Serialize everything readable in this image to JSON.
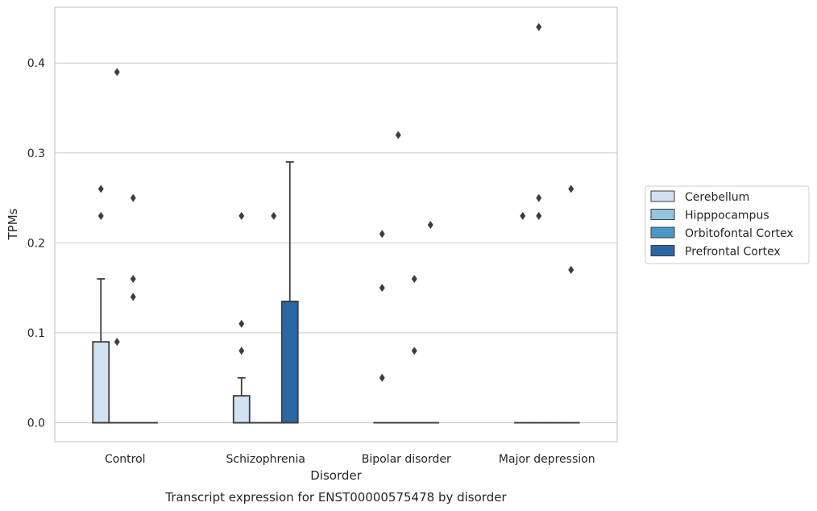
{
  "chart_data": {
    "type": "boxplot",
    "xlabel": "Disorder",
    "ylabel": "TPMs",
    "caption": "Transcript expression for ENST00000575478 by disorder",
    "ylim": [
      -0.021,
      0.462
    ],
    "yticks": [
      0.0,
      0.1,
      0.2,
      0.3,
      0.4
    ],
    "ytick_labels": [
      "0.0",
      "0.1",
      "0.2",
      "0.3",
      "0.4"
    ],
    "grid": "horizontal",
    "legend_position": "right",
    "categories": [
      "Control",
      "Schizophrenia",
      "Bipolar disorder",
      "Major depression"
    ],
    "series": [
      {
        "name": "Cerebellum",
        "color": "#d0e1f2",
        "boxes": [
          {
            "q1": 0.0,
            "median": 0.0,
            "q3": 0.09,
            "whislo": 0.0,
            "whishi": 0.16,
            "fliers": [
              0.23,
              0.26
            ]
          },
          {
            "q1": 0.0,
            "median": 0.0,
            "q3": 0.03,
            "whislo": 0.0,
            "whishi": 0.05,
            "fliers": [
              0.08,
              0.11,
              0.23
            ]
          },
          {
            "q1": 0.0,
            "median": 0.0,
            "q3": 0.0,
            "whislo": 0.0,
            "whishi": 0.0,
            "fliers": [
              0.05,
              0.15,
              0.21
            ]
          },
          {
            "q1": 0.0,
            "median": 0.0,
            "q3": 0.0,
            "whislo": 0.0,
            "whishi": 0.0,
            "fliers": [
              0.23
            ]
          }
        ]
      },
      {
        "name": "Hipppocampus",
        "color": "#94c4df",
        "boxes": [
          {
            "q1": 0.0,
            "median": 0.0,
            "q3": 0.0,
            "whislo": 0.0,
            "whishi": 0.0,
            "fliers": [
              0.09,
              0.39
            ]
          },
          {
            "q1": 0.0,
            "median": 0.0,
            "q3": 0.0,
            "whislo": 0.0,
            "whishi": 0.0,
            "fliers": []
          },
          {
            "q1": 0.0,
            "median": 0.0,
            "q3": 0.0,
            "whislo": 0.0,
            "whishi": 0.0,
            "fliers": [
              0.32
            ]
          },
          {
            "q1": 0.0,
            "median": 0.0,
            "q3": 0.0,
            "whislo": 0.0,
            "whishi": 0.0,
            "fliers": [
              0.23,
              0.25,
              0.44
            ]
          }
        ]
      },
      {
        "name": "Orbitofontal Cortex",
        "color": "#4a98c9",
        "boxes": [
          {
            "q1": 0.0,
            "median": 0.0,
            "q3": 0.0,
            "whislo": 0.0,
            "whishi": 0.0,
            "fliers": [
              0.14,
              0.16,
              0.25
            ]
          },
          {
            "q1": 0.0,
            "median": 0.0,
            "q3": 0.0,
            "whislo": 0.0,
            "whishi": 0.0,
            "fliers": [
              0.23
            ]
          },
          {
            "q1": 0.0,
            "median": 0.0,
            "q3": 0.0,
            "whislo": 0.0,
            "whishi": 0.0,
            "fliers": [
              0.08,
              0.16
            ]
          },
          {
            "q1": 0.0,
            "median": 0.0,
            "q3": 0.0,
            "whislo": 0.0,
            "whishi": 0.0,
            "fliers": []
          }
        ]
      },
      {
        "name": "Prefrontal Cortex",
        "color": "#2a67a5",
        "boxes": [
          {
            "q1": 0.0,
            "median": 0.0,
            "q3": 0.0,
            "whislo": 0.0,
            "whishi": 0.0,
            "fliers": []
          },
          {
            "q1": 0.0,
            "median": 0.0,
            "q3": 0.135,
            "whislo": 0.0,
            "whishi": 0.29,
            "fliers": []
          },
          {
            "q1": 0.0,
            "median": 0.0,
            "q3": 0.0,
            "whislo": 0.0,
            "whishi": 0.0,
            "fliers": [
              0.22
            ]
          },
          {
            "q1": 0.0,
            "median": 0.0,
            "q3": 0.0,
            "whislo": 0.0,
            "whishi": 0.0,
            "fliers": [
              0.17,
              0.26
            ]
          }
        ]
      }
    ]
  }
}
